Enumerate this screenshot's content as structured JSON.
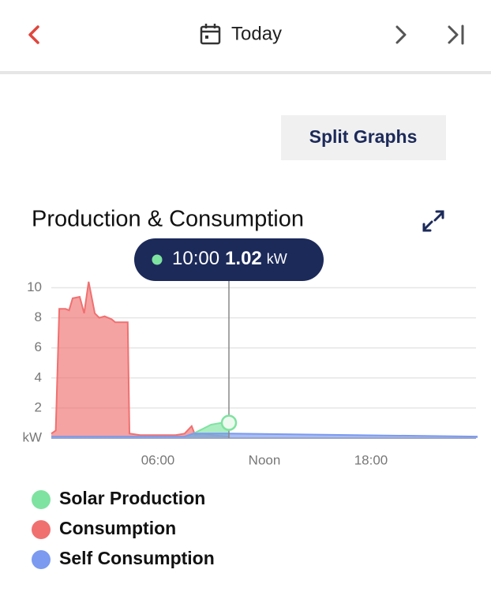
{
  "header": {
    "title": "Today"
  },
  "split_button": "Split Graphs",
  "chart_data": {
    "type": "area",
    "title": "Production & Consumption",
    "tooltip": {
      "time": "10:00",
      "value": 1.02,
      "unit": "kW"
    },
    "xlim": [
      0,
      24
    ],
    "xticks": [
      {
        "value": 6,
        "label": "06:00"
      },
      {
        "value": 12,
        "label": "Noon"
      },
      {
        "value": 18,
        "label": "18:00"
      }
    ],
    "ylim": [
      0,
      10.5
    ],
    "yticks": [
      {
        "value": 0,
        "label": "kW"
      },
      2,
      4,
      6,
      8,
      10
    ],
    "grid": true,
    "cursor_x": 10,
    "series": [
      {
        "name": "Solar Production",
        "color": "#7ee3a0",
        "x": [
          0,
          7.5,
          8,
          8.5,
          9,
          9.5,
          10
        ],
        "values": [
          0,
          0,
          0.3,
          0.6,
          0.9,
          1.0,
          1.02
        ]
      },
      {
        "name": "Consumption",
        "color": "#f07070",
        "x": [
          0,
          0.25,
          0.45,
          0.8,
          1.0,
          1.2,
          1.6,
          1.85,
          2.1,
          2.45,
          2.7,
          3.0,
          3.4,
          3.6,
          4.3,
          4.4,
          5,
          6,
          7,
          7.5,
          7.9,
          8.1,
          8.5,
          9,
          10
        ],
        "values": [
          0.3,
          0.5,
          8.6,
          8.6,
          8.5,
          9.3,
          9.4,
          8.3,
          10.4,
          8.3,
          8.0,
          8.1,
          7.9,
          7.7,
          7.7,
          0.3,
          0.2,
          0.2,
          0.2,
          0.3,
          0.8,
          0.2,
          0.3,
          0.2,
          0.1
        ]
      },
      {
        "name": "Self Consumption",
        "color": "#7b9af0",
        "x": [
          0,
          7.5,
          8,
          8.5,
          9,
          10,
          24
        ],
        "values": [
          0.1,
          0.1,
          0.3,
          0.3,
          0.3,
          0.3,
          0.1
        ]
      }
    ]
  }
}
